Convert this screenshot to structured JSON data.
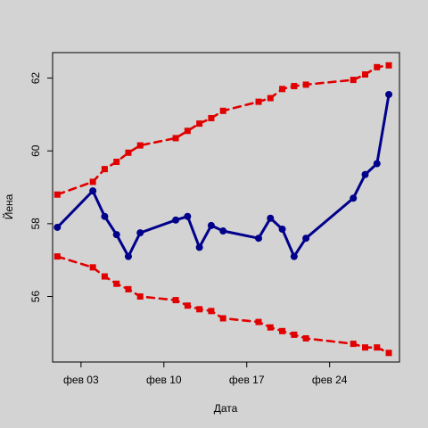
{
  "chart_data": {
    "type": "line",
    "title": "",
    "xlabel": "Дата",
    "ylabel": "Йена",
    "x_ticks": [
      {
        "label": "фев 03",
        "day": 3
      },
      {
        "label": "фев 10",
        "day": 10
      },
      {
        "label": "фев 17",
        "day": 17
      },
      {
        "label": "фев 24",
        "day": 24
      }
    ],
    "x_range": [
      0.6,
      29.9
    ],
    "y_ticks": [
      56,
      58,
      60,
      62
    ],
    "ylim": [
      54.2,
      62.7
    ],
    "grid": false,
    "x": [
      1,
      4,
      5,
      6,
      7,
      8,
      11,
      12,
      13,
      14,
      15,
      18,
      19,
      20,
      21,
      22,
      26,
      27,
      28,
      29
    ],
    "series": [
      {
        "role": "main",
        "color": "#00008b",
        "line_style": "solid",
        "values": [
          57.9,
          58.9,
          58.2,
          57.7,
          57.1,
          57.75,
          58.1,
          58.2,
          57.35,
          57.95,
          57.8,
          57.6,
          58.15,
          57.85,
          57.1,
          57.6,
          58.7,
          59.35,
          59.65,
          61.55
        ]
      },
      {
        "role": "upper",
        "color": "#e00000",
        "line_style": "dashed",
        "values": [
          58.8,
          59.15,
          59.5,
          59.7,
          59.95,
          60.15,
          60.35,
          60.55,
          60.75,
          60.9,
          61.1,
          61.35,
          61.45,
          61.7,
          61.78,
          61.82,
          61.95,
          62.1,
          62.3,
          62.35
        ]
      },
      {
        "role": "lower",
        "color": "#e00000",
        "line_style": "dashed",
        "values": [
          57.1,
          56.8,
          56.55,
          56.35,
          56.2,
          56.0,
          55.9,
          55.75,
          55.65,
          55.6,
          55.4,
          55.3,
          55.15,
          55.05,
          54.95,
          54.85,
          54.7,
          54.6,
          54.6,
          54.45
        ]
      }
    ]
  }
}
